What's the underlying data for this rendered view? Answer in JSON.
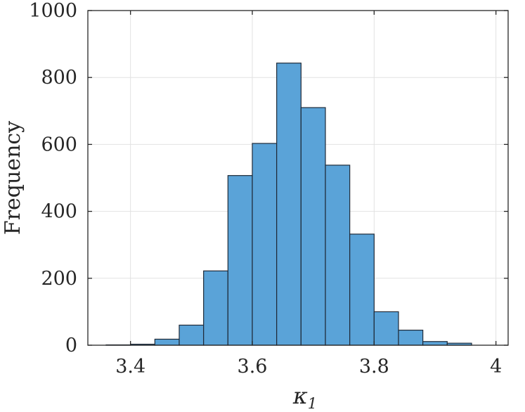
{
  "chart_data": {
    "type": "bar",
    "subtype": "histogram",
    "bin_edges": [
      3.36,
      3.4,
      3.44,
      3.48,
      3.52,
      3.56,
      3.6,
      3.64,
      3.68,
      3.72,
      3.76,
      3.8,
      3.84,
      3.88,
      3.92,
      3.96,
      4.0
    ],
    "values": [
      1,
      3,
      18,
      60,
      222,
      507,
      603,
      843,
      710,
      538,
      332,
      100,
      45,
      11,
      6,
      0
    ],
    "title": "",
    "xlabel": "κ",
    "xlabel_subscript": "1",
    "ylabel": "Frequency",
    "xlim": [
      3.33,
      4.02
    ],
    "ylim": [
      0,
      1000
    ],
    "xticks": [
      3.4,
      3.6,
      3.8,
      4.0
    ],
    "xtick_labels": [
      "3.4",
      "3.6",
      "3.8",
      "4"
    ],
    "yticks": [
      0,
      200,
      400,
      600,
      800,
      1000
    ],
    "ytick_labels": [
      "0",
      "200",
      "400",
      "600",
      "800",
      "1000"
    ],
    "grid": true,
    "legend": "none",
    "colors": {
      "bar_fill": "#5aa3d8",
      "bar_edge": "#1f2a38",
      "grid": "#e2e2e2",
      "axis": "#262626"
    }
  }
}
